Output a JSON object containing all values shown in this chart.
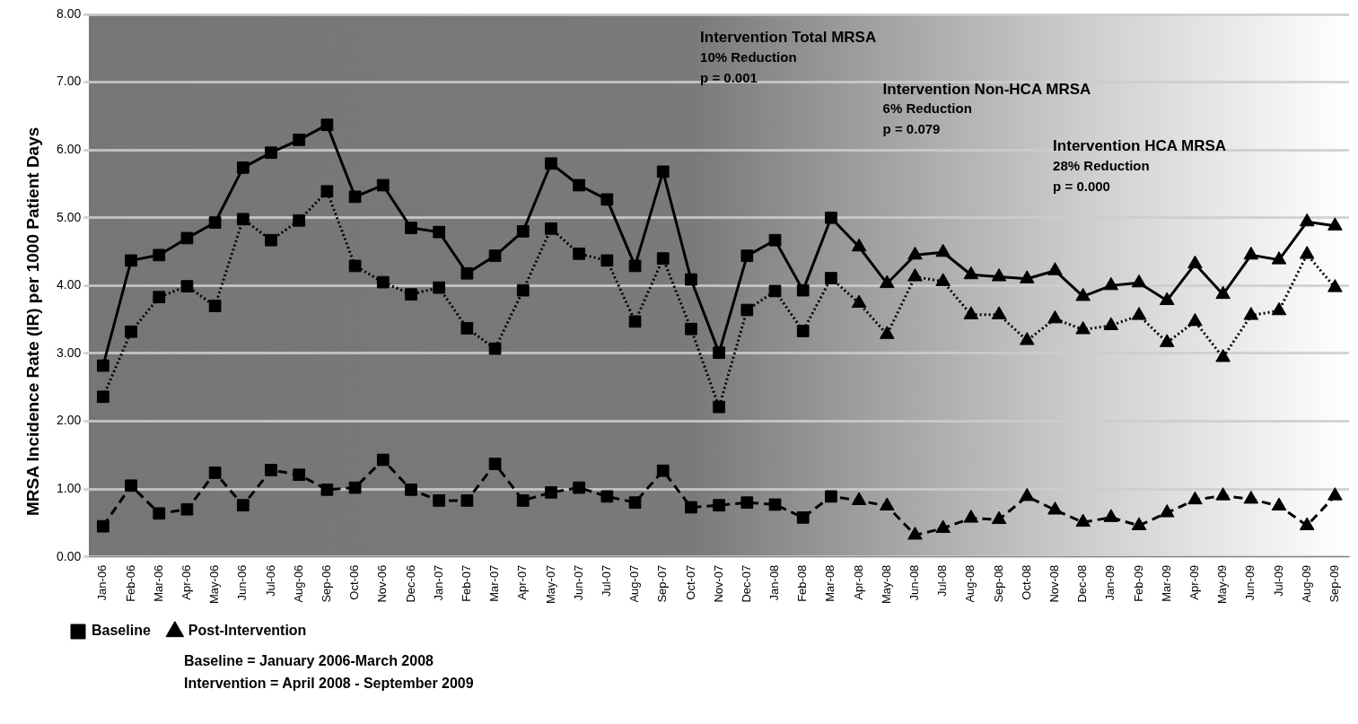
{
  "chart_data": {
    "type": "line",
    "ylabel": "MRSA Incidence Rate (IR) per 1000 Patient Days",
    "categories": [
      "Jan-06",
      "Feb-06",
      "Mar-06",
      "Apr-06",
      "May-06",
      "Jun-06",
      "Jul-06",
      "Aug-06",
      "Sep-06",
      "Oct-06",
      "Nov-06",
      "Dec-06",
      "Jan-07",
      "Feb-07",
      "Mar-07",
      "Apr-07",
      "May-07",
      "Jun-07",
      "Jul-07",
      "Aug-07",
      "Sep-07",
      "Oct-07",
      "Nov-07",
      "Dec-07",
      "Jan-08",
      "Feb-08",
      "Mar-08",
      "Apr-08",
      "May-08",
      "Jun-08",
      "Jul-08",
      "Aug-08",
      "Sep-08",
      "Oct-08",
      "Nov-08",
      "Dec-08",
      "Jan-09",
      "Feb-09",
      "Mar-09",
      "Apr-09",
      "May-09",
      "Jun-09",
      "Jul-09",
      "Aug-09",
      "Sep-09"
    ],
    "series": [
      {
        "color": "#000000",
        "line_style": "solid",
        "marker": "none",
        "values": [
          2.82,
          4.37,
          4.45,
          4.7,
          4.93,
          5.74,
          5.96,
          6.15,
          6.37,
          5.31,
          5.48,
          4.85,
          4.79,
          4.18,
          4.44,
          4.8,
          5.8,
          5.48,
          5.27,
          4.29,
          5.68,
          4.09,
          3.01,
          4.44,
          4.67,
          3.93,
          5.0,
          4.57,
          4.03,
          4.45,
          4.49,
          4.16,
          4.13,
          4.1,
          4.22,
          3.84,
          4.0,
          4.04,
          3.78,
          4.32,
          3.87,
          4.45,
          4.38,
          4.94,
          4.88
        ]
      },
      {
        "color": "#000000",
        "line_style": "dotted",
        "marker": "none",
        "values": [
          2.36,
          3.32,
          3.83,
          3.99,
          3.7,
          4.98,
          4.67,
          4.96,
          5.39,
          4.29,
          4.05,
          3.87,
          3.97,
          3.37,
          3.07,
          3.93,
          4.84,
          4.47,
          4.37,
          3.47,
          4.4,
          3.36,
          2.21,
          3.64,
          3.92,
          3.33,
          4.11,
          3.74,
          3.28,
          4.13,
          4.06,
          3.57,
          3.57,
          3.19,
          3.51,
          3.35,
          3.41,
          3.56,
          3.16,
          3.47,
          2.94,
          3.56,
          3.63,
          4.46,
          3.97
        ]
      },
      {
        "color": "#000000",
        "line_style": "dashed",
        "marker": "none",
        "values": [
          0.45,
          1.05,
          0.64,
          0.7,
          1.24,
          0.76,
          1.28,
          1.21,
          0.99,
          1.02,
          1.43,
          0.99,
          0.83,
          0.83,
          1.37,
          0.83,
          0.95,
          1.02,
          0.89,
          0.8,
          1.27,
          0.73,
          0.76,
          0.8,
          0.77,
          0.58,
          0.89,
          0.83,
          0.75,
          0.32,
          0.42,
          0.57,
          0.55,
          0.89,
          0.69,
          0.51,
          0.58,
          0.46,
          0.65,
          0.84,
          0.9,
          0.85,
          0.75,
          0.46,
          0.9
        ]
      },
      {
        "type": "scatter",
        "name": "Baseline",
        "color": "#000000",
        "marker": "square",
        "x": [
          "Jan-06",
          "Feb-06",
          "Mar-06",
          "Apr-06",
          "May-06",
          "Jun-06",
          "Jul-06",
          "Aug-06",
          "Sep-06",
          "Oct-06",
          "Nov-06",
          "Dec-06",
          "Jan-07",
          "Feb-07",
          "Mar-07",
          "Apr-07",
          "May-07",
          "Jun-07",
          "Jul-07",
          "Aug-07",
          "Sep-07",
          "Oct-07",
          "Nov-07",
          "Dec-07",
          "Jan-08",
          "Feb-08",
          "Mar-08",
          "Jan-06",
          "Feb-06",
          "Mar-06",
          "Apr-06",
          "May-06",
          "Jun-06",
          "Jul-06",
          "Aug-06",
          "Sep-06",
          "Oct-06",
          "Nov-06",
          "Dec-06",
          "Jan-07",
          "Feb-07",
          "Mar-07",
          "Apr-07",
          "May-07",
          "Jun-07",
          "Jul-07",
          "Aug-07",
          "Sep-07",
          "Oct-07",
          "Nov-07",
          "Dec-07",
          "Jan-08",
          "Feb-08",
          "Mar-08",
          "Jan-06",
          "Feb-06",
          "Mar-06",
          "Apr-06",
          "May-06",
          "Jun-06",
          "Jul-06",
          "Aug-06",
          "Sep-06",
          "Oct-06",
          "Nov-06",
          "Dec-06",
          "Jan-07",
          "Feb-07",
          "Mar-07",
          "Apr-07",
          "May-07",
          "Jun-07",
          "Jul-07",
          "Aug-07",
          "Sep-07",
          "Oct-07",
          "Nov-07",
          "Dec-07",
          "Jan-08",
          "Feb-08",
          "Mar-08"
        ],
        "values": [
          2.82,
          4.37,
          4.45,
          4.7,
          4.93,
          5.74,
          5.96,
          6.15,
          6.37,
          5.31,
          5.48,
          4.85,
          4.79,
          4.18,
          4.44,
          4.8,
          5.8,
          5.48,
          5.27,
          4.29,
          5.68,
          4.09,
          3.01,
          4.44,
          4.67,
          3.93,
          5.0,
          2.36,
          3.32,
          3.83,
          3.99,
          3.7,
          4.98,
          4.67,
          4.96,
          5.39,
          4.29,
          4.05,
          3.87,
          3.97,
          3.37,
          3.07,
          3.93,
          4.84,
          4.47,
          4.37,
          3.47,
          4.4,
          3.36,
          2.21,
          3.64,
          3.92,
          3.33,
          4.11,
          0.45,
          1.05,
          0.64,
          0.7,
          1.24,
          0.76,
          1.28,
          1.21,
          0.99,
          1.02,
          1.43,
          0.99,
          0.83,
          0.83,
          1.37,
          0.83,
          0.95,
          1.02,
          0.89,
          0.8,
          1.27,
          0.73,
          0.76,
          0.8,
          0.77,
          0.58,
          0.89
        ]
      },
      {
        "type": "scatter",
        "name": "Post-Intervention",
        "color": "#000000",
        "marker": "triangle",
        "x": [
          "Apr-08",
          "May-08",
          "Jun-08",
          "Jul-08",
          "Aug-08",
          "Sep-08",
          "Oct-08",
          "Nov-08",
          "Dec-08",
          "Jan-09",
          "Feb-09",
          "Mar-09",
          "Apr-09",
          "May-09",
          "Jun-09",
          "Jul-09",
          "Aug-09",
          "Sep-09",
          "Apr-08",
          "May-08",
          "Jun-08",
          "Jul-08",
          "Aug-08",
          "Sep-08",
          "Oct-08",
          "Nov-08",
          "Dec-08",
          "Jan-09",
          "Feb-09",
          "Mar-09",
          "Apr-09",
          "May-09",
          "Jun-09",
          "Jul-09",
          "Aug-09",
          "Sep-09",
          "Apr-08",
          "May-08",
          "Jun-08",
          "Jul-08",
          "Aug-08",
          "Sep-08",
          "Oct-08",
          "Nov-08",
          "Dec-08",
          "Jan-09",
          "Feb-09",
          "Mar-09",
          "Apr-09",
          "May-09",
          "Jun-09",
          "Jul-09",
          "Aug-09",
          "Sep-09"
        ],
        "values": [
          4.57,
          4.03,
          4.45,
          4.49,
          4.16,
          4.13,
          4.1,
          4.22,
          3.84,
          4.0,
          4.04,
          3.78,
          4.32,
          3.87,
          4.45,
          4.38,
          4.94,
          4.88,
          3.74,
          3.28,
          4.13,
          4.06,
          3.57,
          3.57,
          3.19,
          3.51,
          3.35,
          3.41,
          3.56,
          3.16,
          3.47,
          2.94,
          3.56,
          3.63,
          4.46,
          3.97,
          0.83,
          0.75,
          0.32,
          0.42,
          0.57,
          0.55,
          0.89,
          0.69,
          0.51,
          0.58,
          0.46,
          0.65,
          0.84,
          0.9,
          0.85,
          0.75,
          0.46,
          0.9
        ]
      }
    ],
    "ylim": [
      0,
      8
    ],
    "yticks": [
      {
        "value": 0,
        "label": "0.00"
      },
      {
        "value": 1,
        "label": "1.00"
      },
      {
        "value": 2,
        "label": "2.00"
      },
      {
        "value": 3,
        "label": "3.00"
      },
      {
        "value": 4,
        "label": "4.00"
      },
      {
        "value": 5,
        "label": "5.00"
      },
      {
        "value": 6,
        "label": "6.00"
      },
      {
        "value": 7,
        "label": "7.00"
      },
      {
        "value": 8,
        "label": "8.00"
      }
    ],
    "grid": "y",
    "legend": "bottom left",
    "annotations": [
      "Intervention Total MRSA\n10% Reduction\np = 0.001",
      "Intervention Non-HCA MRSA\n6% Reduction\np = 0.079",
      "Intervention HCA MRSA\n28% Reduction\np = 0.000",
      "Baseline = January 2006-March 2008",
      "Intervention = April 2008 - September 2009"
    ]
  }
}
